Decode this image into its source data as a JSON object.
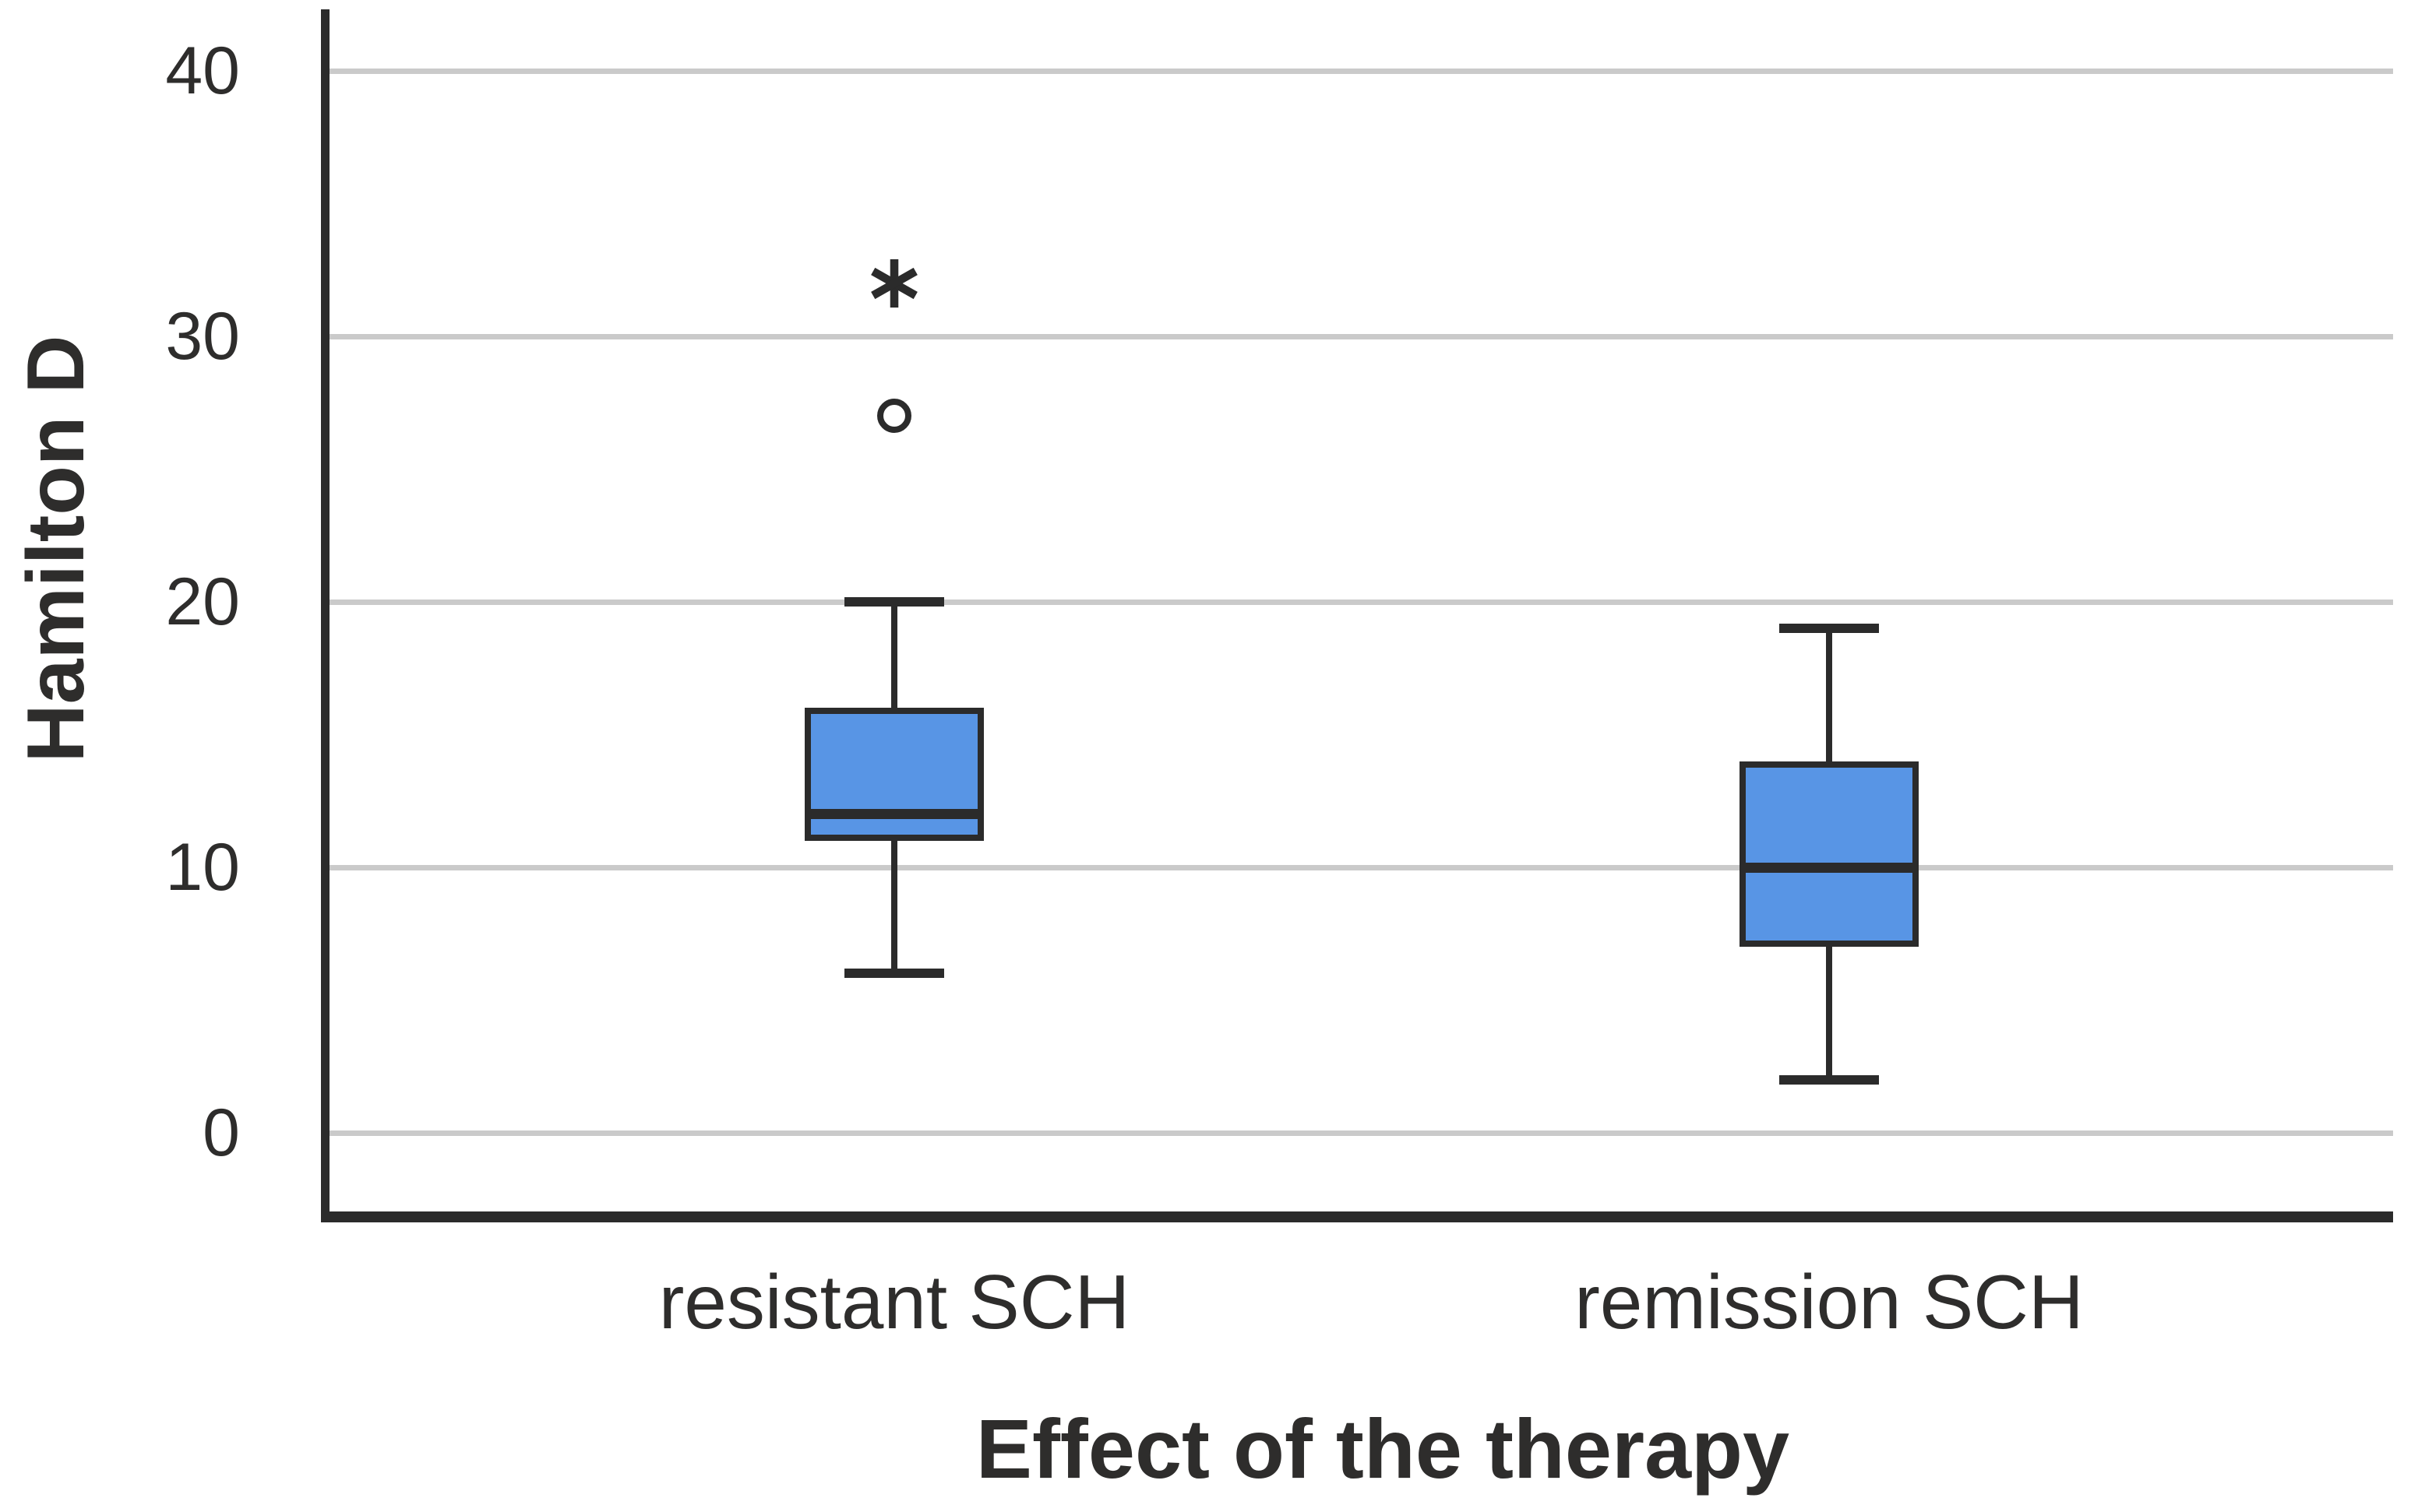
{
  "chart_data": {
    "type": "boxplot",
    "title": "",
    "xlabel": "Effect of the therapy",
    "ylabel": "Hamilton D",
    "categories": [
      "resistant SCH",
      "remission SCH"
    ],
    "yticks": [
      0,
      10,
      20,
      30,
      40
    ],
    "ylim": [
      -3,
      42
    ],
    "grid": "horizontal-gridlines-only",
    "legend": "none",
    "boxes": [
      {
        "category": "resistant SCH",
        "whisker_low": 6,
        "q1": 11,
        "median": 12,
        "q3": 16,
        "whisker_high": 20,
        "outliers": [
          {
            "value": 27,
            "marker": "circle"
          },
          {
            "value": 32,
            "marker": "asterisk"
          }
        ]
      },
      {
        "category": "remission SCH",
        "whisker_low": 2,
        "q1": 7,
        "median": 10,
        "q3": 14,
        "whisker_high": 19,
        "outliers": []
      }
    ],
    "colors": {
      "box_fill": "#5895E5",
      "box_stroke": "#2B2B2B",
      "gridline": "#CACACA",
      "axis": "#2B2B2B",
      "text": "#2E2D2C"
    }
  }
}
